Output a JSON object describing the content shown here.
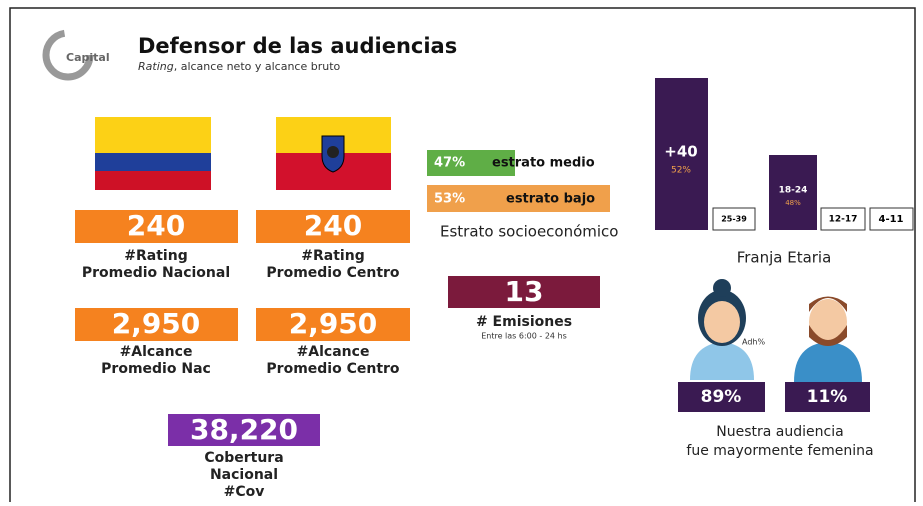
{
  "header": {
    "title": "Defensor de las audiencias",
    "subtitle_em": "Rating",
    "subtitle_rest": ", alcance neto y alcance bruto",
    "logo": "Capital"
  },
  "metrics": [
    {
      "value": 240,
      "line1": "#Rating",
      "line2": "Promedio Nacional"
    },
    {
      "value": 240,
      "line1": "#Rating",
      "line2": "Promedio Centro"
    },
    {
      "value": "2,950",
      "line1": "#Alcance",
      "line2": "Promedio Nac"
    },
    {
      "value": "2,950",
      "line1": "#Alcance",
      "line2": "Promedio Centro"
    }
  ],
  "cobertura": {
    "value": "38,220",
    "lines": [
      "Cobertura",
      "Nacional",
      "#Cov"
    ]
  },
  "estrato": {
    "items": [
      {
        "pct": "47%",
        "name": "estrato medio"
      },
      {
        "pct": "53%",
        "name": "estrato bajo"
      }
    ],
    "label": "Estrato socioeconómico"
  },
  "emisiones": {
    "value": 13,
    "label": "# Emisiones",
    "note": "Entre las 6:00 - 24 hs"
  },
  "franja": {
    "label": "Franja Etaria",
    "groups": [
      {
        "name": "+40",
        "pct": "52%"
      },
      {
        "name": "25-39"
      },
      {
        "name": "18-24",
        "pct": "48%"
      },
      {
        "name": "12-17"
      },
      {
        "name": "4-11"
      }
    ]
  },
  "genero": {
    "adh": "Adh%",
    "female": "89%",
    "male": "11%",
    "caption": [
      "Nuestra audiencia",
      "fue mayormente femenina"
    ]
  }
}
